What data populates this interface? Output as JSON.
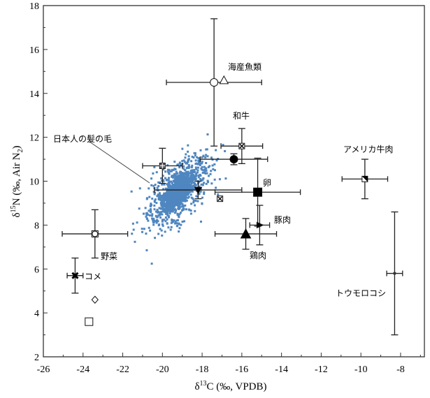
{
  "chart_data": {
    "type": "scatter",
    "title": "",
    "xlabel": {
      "prefix": "δ",
      "sup": "13",
      "rest": "C (‰, VPDB)"
    },
    "ylabel": {
      "prefix": "δ",
      "sup": "15",
      "rest": "N (‰, Air N",
      "sub": "2",
      "end": ")"
    },
    "xlim": [
      -26,
      -6.8
    ],
    "ylim": [
      2,
      18
    ],
    "xticks": [
      -26,
      -24,
      -22,
      -20,
      -18,
      -16,
      -14,
      -12,
      -10,
      -8
    ],
    "yticks": [
      2,
      4,
      6,
      8,
      10,
      12,
      14,
      16,
      18
    ],
    "grid": false,
    "hair_cluster": {
      "label": "日本人の髪の毛",
      "color": "#4f86c0",
      "n": 1400,
      "mean": [
        -19.25,
        9.5
      ],
      "sd": [
        0.55,
        0.55
      ]
    },
    "series": [
      {
        "name": "海産魚類 (circle)",
        "marker": "open-circle",
        "x": -17.4,
        "y": 14.5,
        "xerr": 2.4,
        "yerr": 2.9
      },
      {
        "name": "海産魚類 (triangle)",
        "marker": "open-triangle",
        "x": -16.9,
        "y": 14.6
      },
      {
        "name": "和牛",
        "marker": "boxed-x",
        "x": -16.0,
        "y": 11.6,
        "xerr": 1.05,
        "yerr": 0.8
      },
      {
        "name": "filled circle",
        "marker": "filled-circle",
        "x": -16.4,
        "y": 11.0,
        "xerr": 1.7,
        "yerr": 0.25
      },
      {
        "name": "卵",
        "marker": "filled-square",
        "x": -15.2,
        "y": 9.5,
        "xerr": 2.15,
        "yerr": 1.55
      },
      {
        "name": "豚肉",
        "marker": "filled-triangle-right",
        "x": -15.1,
        "y": 8.0,
        "xerr": 0.5,
        "yerr": 0.9
      },
      {
        "name": "鶏肉",
        "marker": "filled-triangle",
        "x": -15.8,
        "y": 7.6,
        "xerr": 1.55,
        "yerr": 0.7
      },
      {
        "name": "アメリカ牛肉",
        "marker": "half-square",
        "x": -9.8,
        "y": 10.1,
        "xerr": 1.15,
        "yerr": 0.9
      },
      {
        "name": "トウモロコシ",
        "marker": "small-star",
        "x": -8.3,
        "y": 5.8,
        "xerr": 0.4,
        "yerr": 2.8
      },
      {
        "name": "boxed grid",
        "marker": "boxed-grid",
        "x": -20.0,
        "y": 10.7,
        "xerr": 1.0,
        "yerr": 0.8
      },
      {
        "name": "inverted triangle",
        "marker": "filled-inv-triangle",
        "x": -18.2,
        "y": 9.6,
        "xerr": 2.2,
        "yerr": 0.4
      },
      {
        "name": "boxed x small",
        "marker": "boxed-x",
        "x": -17.1,
        "y": 9.2
      },
      {
        "name": "野菜",
        "marker": "circle-square",
        "x": -23.4,
        "y": 7.6,
        "xerr": 1.65,
        "yerr": 1.1
      },
      {
        "name": "コメ",
        "marker": "bold-x",
        "x": -24.4,
        "y": 5.7,
        "xerr": 0.4,
        "yerr": 0.8
      },
      {
        "name": "diamond",
        "marker": "open-diamond",
        "x": -23.4,
        "y": 4.6
      },
      {
        "name": "open square",
        "marker": "open-square",
        "x": -23.7,
        "y": 3.6
      }
    ],
    "annotations": [
      {
        "text": "海産魚類"
      },
      {
        "text": "和牛"
      },
      {
        "text": "日本人の髪の毛"
      },
      {
        "text": "アメリカ牛肉"
      },
      {
        "text": "卵"
      },
      {
        "text": "豚肉"
      },
      {
        "text": "鶏肉"
      },
      {
        "text": "野菜"
      },
      {
        "text": "コメ"
      },
      {
        "text": "トウモロコシ"
      }
    ]
  }
}
